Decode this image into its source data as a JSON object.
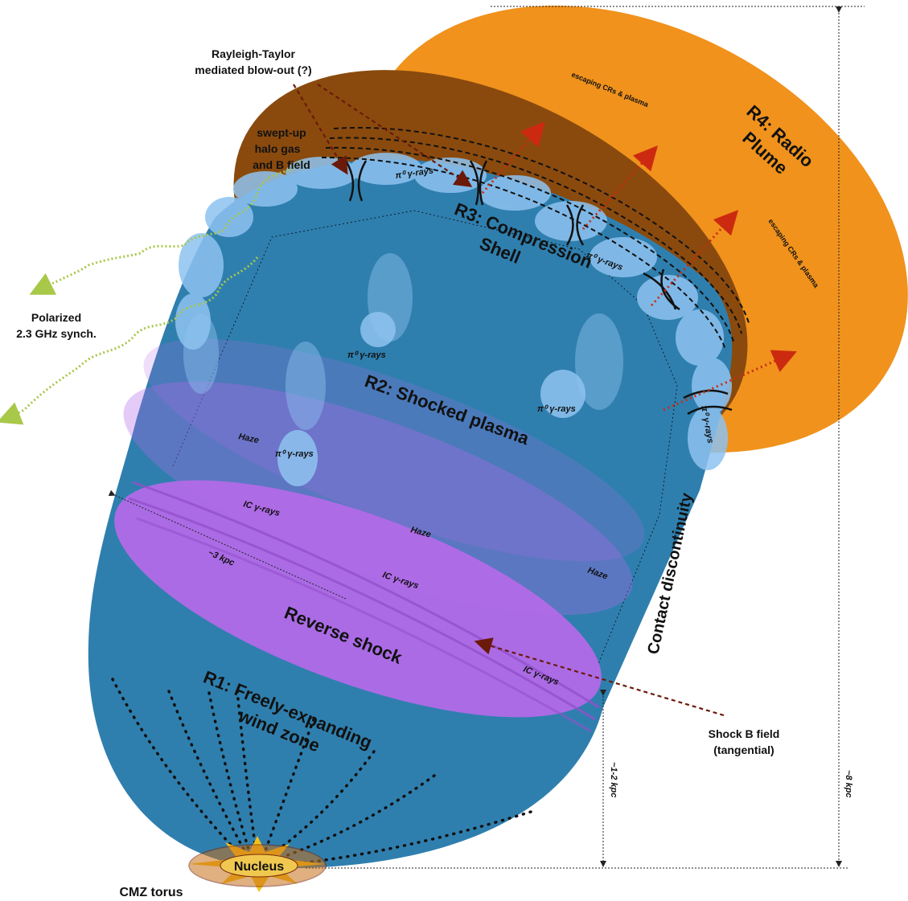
{
  "labels": {
    "rt_line1": "Rayleigh-Taylor",
    "rt_line2": "mediated blow-out (?)",
    "swept_line1": "swept-up",
    "swept_line2": "halo gas",
    "swept_line3": "and B field",
    "polarized_line1": "Polarized",
    "polarized_line2": "2.3 GHz synch.",
    "r4_line1": "R4: Radio",
    "r4_line2": "Plume",
    "escaping_1": "escaping CRs & plasma",
    "escaping_2": "escaping CRs & plasma",
    "r3_line1": "R3: Compression",
    "r3_line2": "Shell",
    "pi0_1": "π⁰ γ-rays",
    "pi0_2": "π⁰ γ-rays",
    "pi0_3": "π⁰ γ-rays",
    "pi0_4": "π⁰ γ-rays",
    "pi0_5": "π⁰ γ-rays",
    "pi0_6": "π⁰ γ-rays",
    "r2": "R2: Shocked plasma",
    "haze_1": "Haze",
    "haze_2": "Haze",
    "haze_3": "Haze",
    "ic_1": "IC γ-rays",
    "ic_2": "IC γ-rays",
    "ic_3": "IC γ-rays",
    "kpc3": "~3 kpc",
    "reverse_shock": "Reverse shock",
    "contact": "Contact discontinuity",
    "shockb_line1": "Shock B field",
    "shockb_line2": "(tangential)",
    "r1_line1": "R1: Freely-expanding",
    "r1_line2": "wind zone",
    "kpc12": "~1-2 kpc",
    "kpc8": "~8 kpc",
    "nucleus": "Nucleus",
    "cmz": "CMZ torus"
  },
  "colors": {
    "plume": "#f0921c",
    "shell_dark": "#8a4a0e",
    "wind": "#2f7fae",
    "reverse_shock": "#b26ae8",
    "cloud": "#8ec3f0",
    "synch": "#a8c84a",
    "arrow": "#6b1a0a",
    "escape_arrow": "#cc2a10",
    "nucleus_star": "#f6c21a",
    "torus": "#c8701a"
  }
}
